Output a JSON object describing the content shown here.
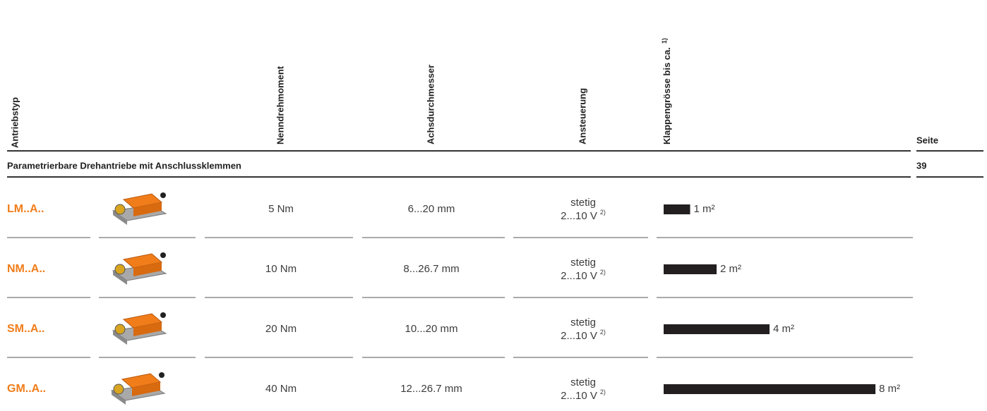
{
  "header": {
    "columns": [
      "Antriebstyp",
      "Nenndrehmoment",
      "Achsdurchmesser",
      "Ansteuerung",
      "Klappengrösse bis ca."
    ],
    "damper_footnote": "1)",
    "page": "Seite"
  },
  "section": {
    "title": "Parametrierbare Drehantriebe mit Anschlussklemmen",
    "page": "39"
  },
  "rows": [
    {
      "type": "LM..A..",
      "torque": "5 Nm",
      "shaft": "6...20 mm",
      "control": "stetig",
      "signal": "2...10 V",
      "signal_footnote": "2)",
      "damper_size": {
        "value": 1,
        "label": "1 m²"
      }
    },
    {
      "type": "NM..A..",
      "torque": "10 Nm",
      "shaft": "8...26.7 mm",
      "control": "stetig",
      "signal": "2...10 V",
      "signal_footnote": "2)",
      "damper_size": {
        "value": 2,
        "label": "2 m²"
      }
    },
    {
      "type": "SM..A..",
      "torque": "20 Nm",
      "shaft": "10...20 mm",
      "control": "stetig",
      "signal": "2...10 V",
      "signal_footnote": "2)",
      "damper_size": {
        "value": 4,
        "label": "4 m²"
      }
    },
    {
      "type": "GM..A..",
      "torque": "40 Nm",
      "shaft": "12...26.7 mm",
      "control": "stetig",
      "signal": "2...10 V",
      "signal_footnote": "2)",
      "damper_size": {
        "value": 8,
        "label": "8 m²"
      }
    }
  ]
}
